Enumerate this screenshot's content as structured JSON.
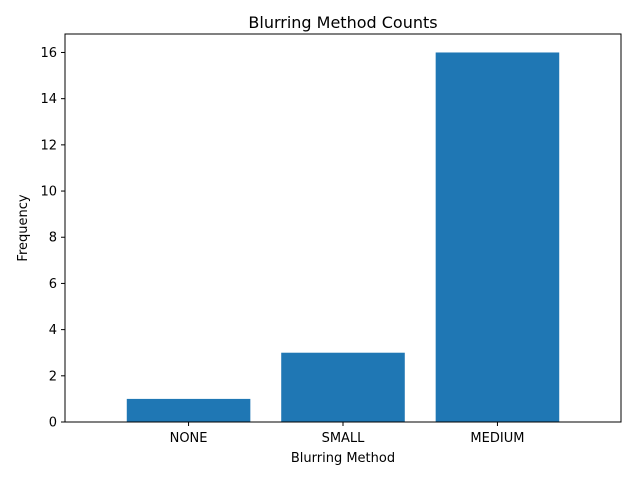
{
  "chart_data": {
    "type": "bar",
    "title": "Blurring Method Counts",
    "xlabel": "Blurring Method",
    "ylabel": "Frequency",
    "categories": [
      "NONE",
      "SMALL",
      "MEDIUM"
    ],
    "values": [
      1,
      3,
      16
    ],
    "ylim": [
      0,
      16.8
    ],
    "yticks": [
      0,
      2,
      4,
      6,
      8,
      10,
      12,
      14,
      16
    ],
    "bar_color": "#1f77b4",
    "grid": false,
    "legend": "none"
  }
}
